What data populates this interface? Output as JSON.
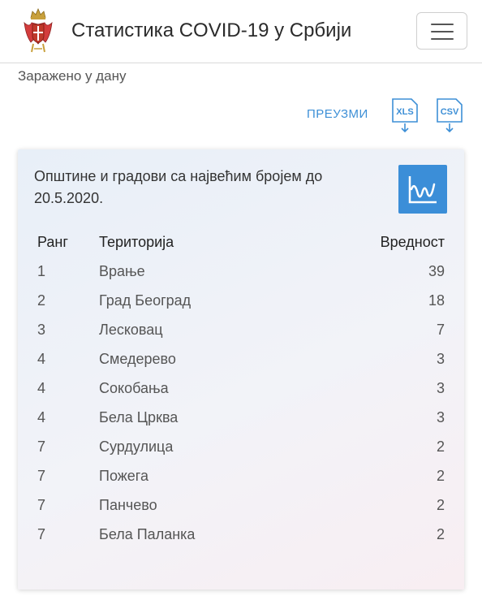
{
  "header": {
    "title": "Статистика COVID-19 у Србији",
    "logo_icon": "serbia-coat-of-arms-icon",
    "menu_icon": "hamburger-menu-icon"
  },
  "subtitle": "Заражено у дану",
  "download": {
    "label": "ПРЕУЗМИ",
    "xls_label": "XLS",
    "csv_label": "CSV"
  },
  "card": {
    "title": "Општине и градови са највећим бројем до 20.5.2020.",
    "chart_icon": "line-chart-icon",
    "accent_color": "#3b8ed8",
    "columns": {
      "rank": "Ранг",
      "territory": "Територија",
      "value": "Вредност"
    },
    "rows": [
      {
        "rank": "1",
        "territory": "Врање",
        "value": "39"
      },
      {
        "rank": "2",
        "territory": "Град Београд",
        "value": "18"
      },
      {
        "rank": "3",
        "territory": "Лесковац",
        "value": "7"
      },
      {
        "rank": "4",
        "territory": "Смедерево",
        "value": "3"
      },
      {
        "rank": "4",
        "territory": "Сокобања",
        "value": "3"
      },
      {
        "rank": "4",
        "territory": "Бела Црква",
        "value": "3"
      },
      {
        "rank": "7",
        "territory": "Сурдулица",
        "value": "2"
      },
      {
        "rank": "7",
        "territory": "Пожега",
        "value": "2"
      },
      {
        "rank": "7",
        "territory": "Панчево",
        "value": "2"
      },
      {
        "rank": "7",
        "territory": "Бела Паланка",
        "value": "2"
      }
    ]
  }
}
